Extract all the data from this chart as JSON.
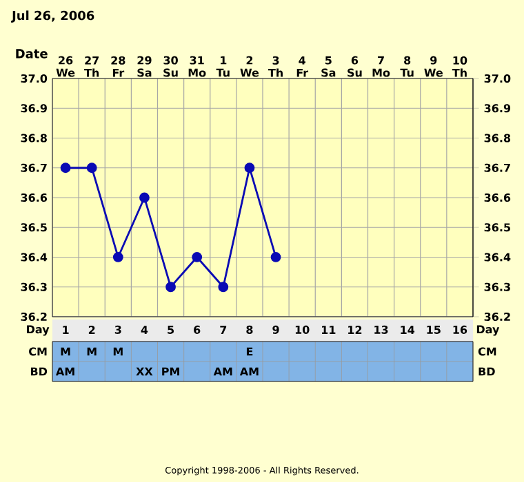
{
  "chart_data": [
    {
      "type": "line",
      "title": "Jul 26, 2006",
      "xlabel": "Date",
      "categories": [
        "26 We",
        "27 Th",
        "28 Fr",
        "29 Sa",
        "30 Su",
        "31 Mo",
        "1 Tu",
        "2 We",
        "3 Th",
        "4 Fr",
        "5 Sa",
        "6 Su",
        "7 Mo",
        "8 Tu",
        "9 We",
        "10 Th"
      ],
      "series": [
        {
          "color": "#0a0ab4",
          "values": [
            36.7,
            36.7,
            36.4,
            36.6,
            36.3,
            36.4,
            36.3,
            36.7,
            36.4,
            null,
            null,
            null,
            null,
            null,
            null,
            null
          ]
        }
      ],
      "ylim": [
        36.2,
        37.0
      ],
      "yticks": [
        36.2,
        36.3,
        36.4,
        36.5,
        36.6,
        36.7,
        36.8,
        36.9,
        {
          "value": 37.0,
          "label": "37.0"
        }
      ],
      "y2lim": [
        36.2,
        37.0
      ],
      "y2ticks": [
        36.2,
        36.3,
        36.4,
        36.5,
        36.6,
        36.7,
        36.8,
        36.9,
        {
          "value": 37.0,
          "label": "37.0"
        }
      ],
      "grid": true,
      "marker": "circle",
      "line_style": "solid"
    },
    {
      "type": "heatmap",
      "xlabel": "Day",
      "categories": [
        "1",
        "2",
        "3",
        "4",
        "5",
        "6",
        "7",
        "8",
        "9",
        "10",
        "11",
        "12",
        "13",
        "14",
        "15",
        "16"
      ],
      "y_categories": [
        "CM",
        "BD"
      ],
      "y2_categories": [
        "CM",
        "BD"
      ],
      "cells": [
        [
          null,
          null,
          null,
          null,
          null,
          null,
          null,
          null,
          null,
          null,
          null,
          null,
          null,
          null,
          null,
          null
        ],
        [
          null,
          null,
          null,
          null,
          null,
          null,
          null,
          null,
          null,
          null,
          null,
          null,
          null,
          null,
          null,
          null
        ]
      ],
      "cell_labels": [
        [
          "M",
          "M",
          "M",
          null,
          null,
          null,
          null,
          "E",
          null,
          null,
          null,
          null,
          null,
          null,
          null,
          null
        ],
        [
          "AM",
          null,
          null,
          "XX",
          "PM",
          null,
          "AM",
          "AM",
          null,
          null,
          null,
          null,
          null,
          null,
          null,
          null
        ]
      ],
      "annotations": [
        "Copyright 1998-2006 - All Rights Reserved."
      ]
    }
  ]
}
